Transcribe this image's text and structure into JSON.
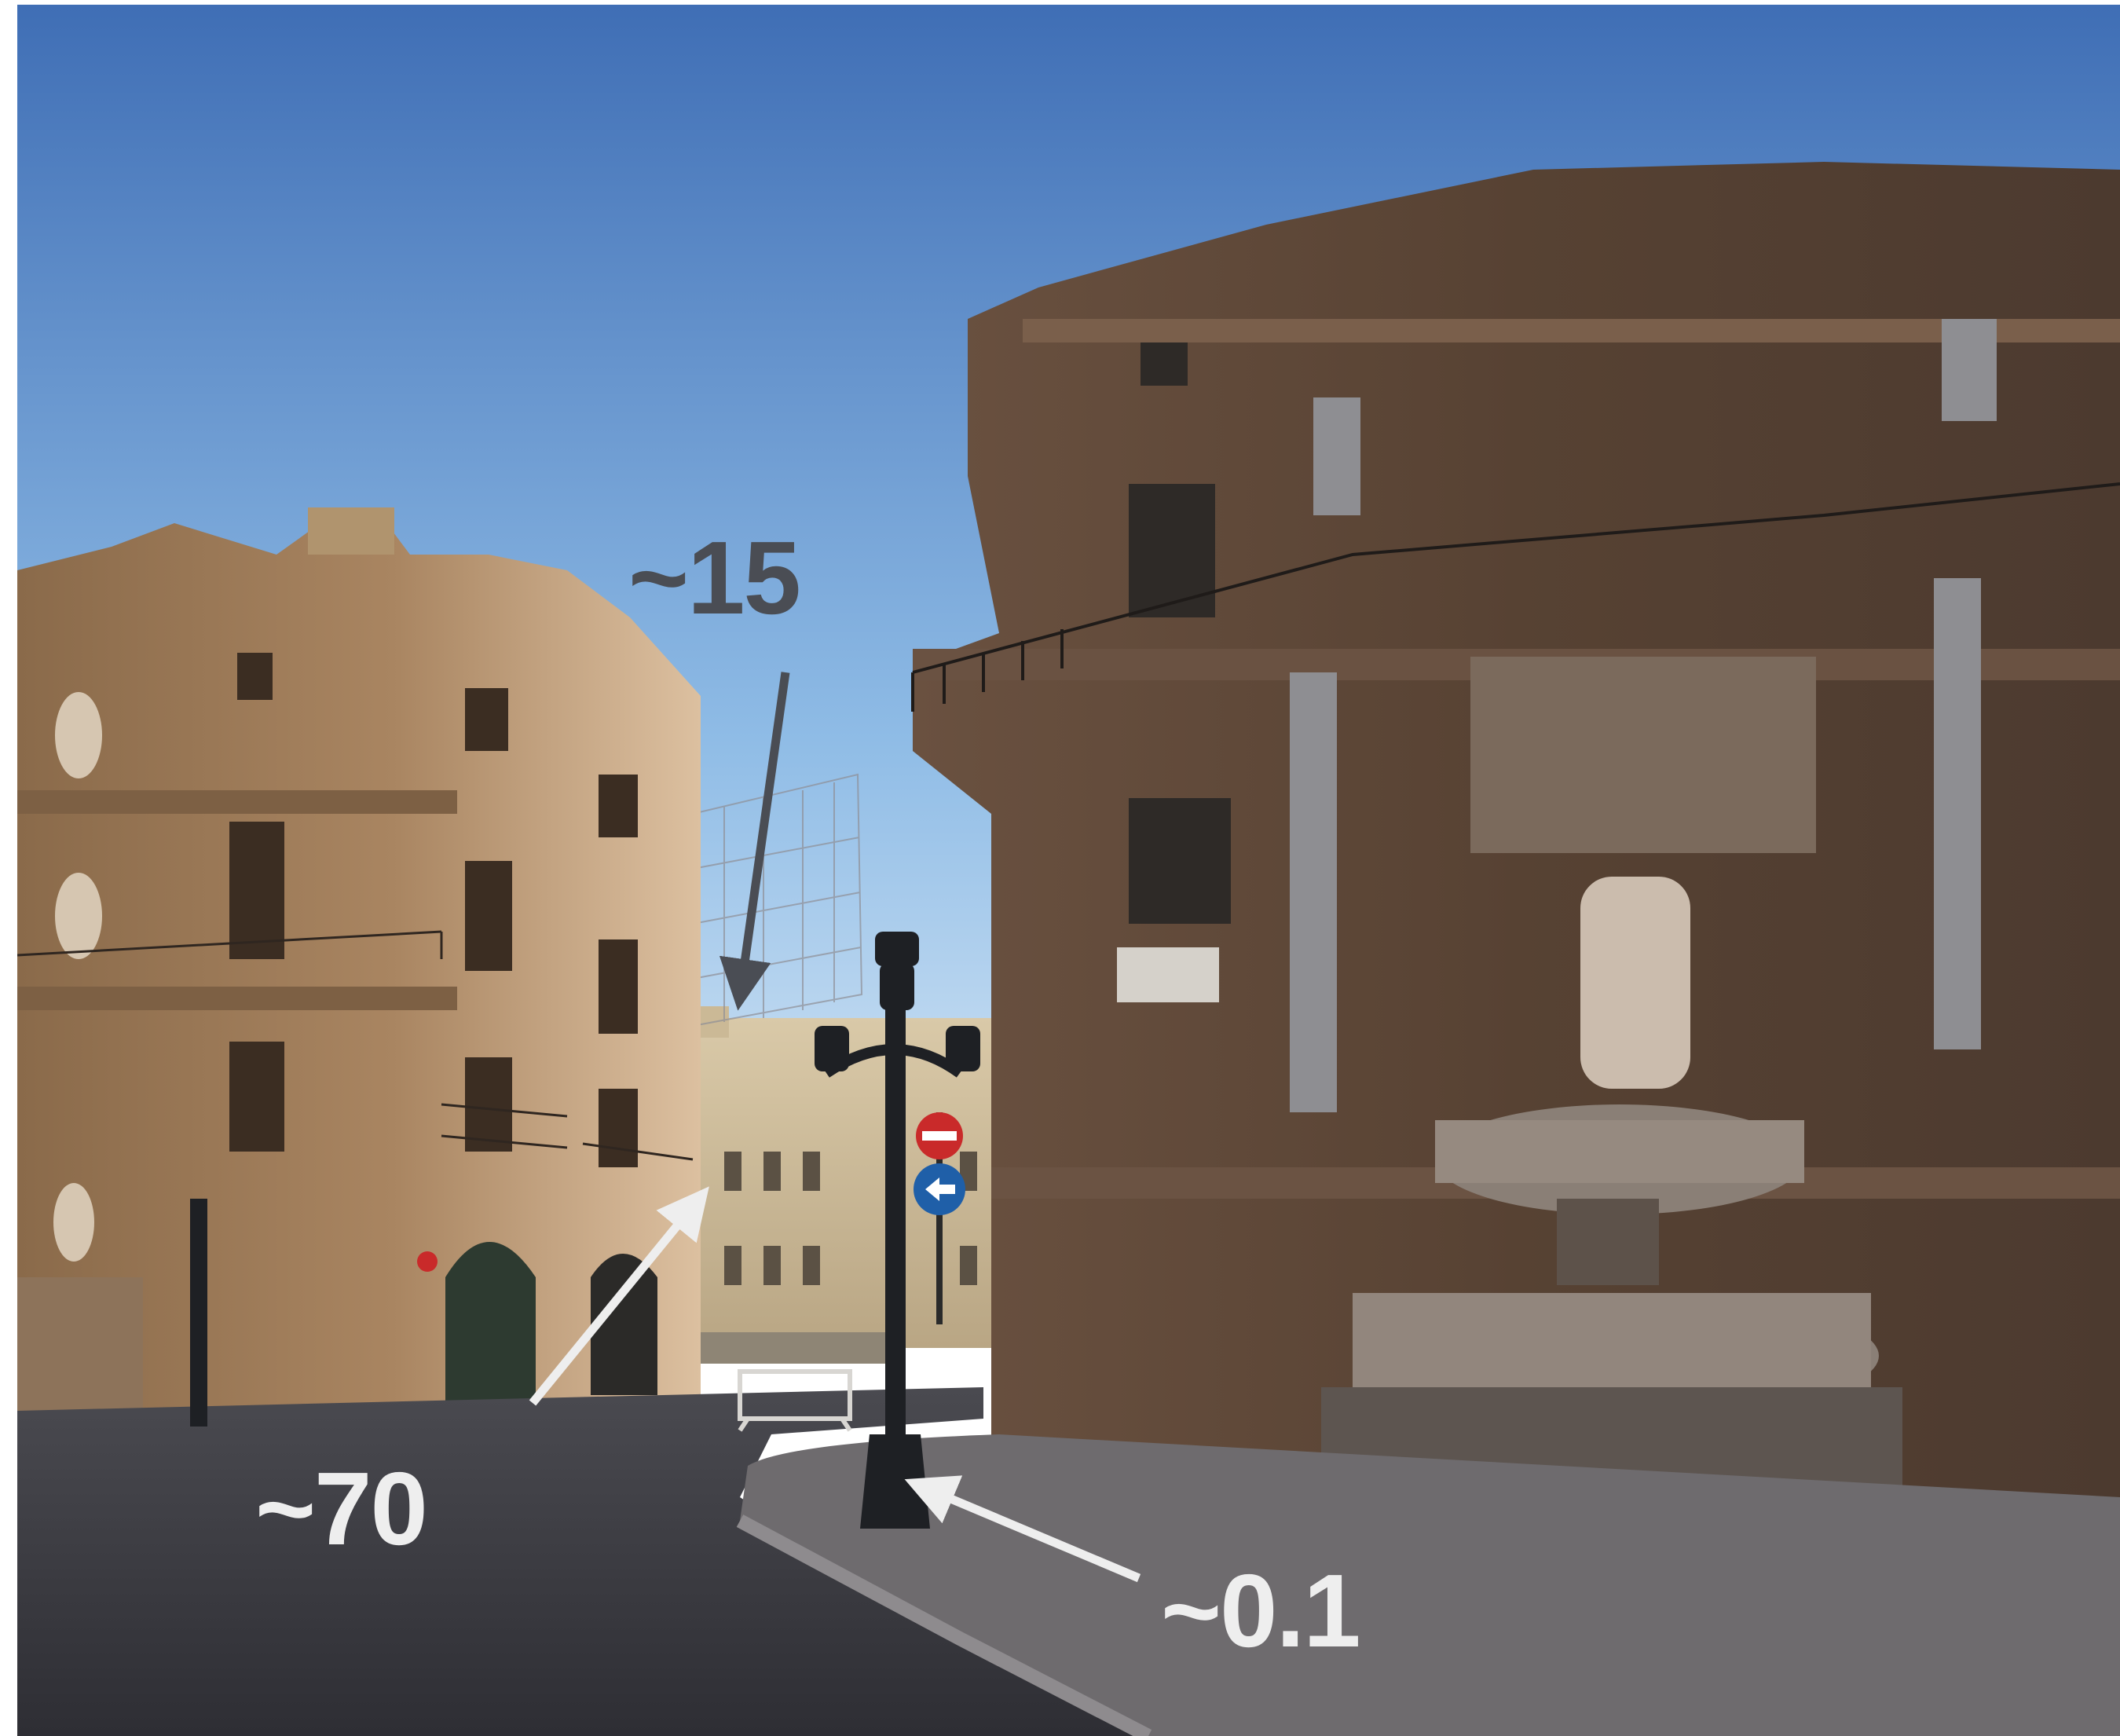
{
  "scene": {
    "icon": "photo-plaza-quattro-canti",
    "colors": {
      "sky_top": "#3f6eb5",
      "sky_bottom": "#c9e2f4",
      "building_left": "#9a7550",
      "building_left_light": "#d8b48a",
      "building_right": "#5e4636",
      "pavement": "#3c3c42",
      "sidewalk": "#6f6c6e",
      "lamp": "#1e2024",
      "arrow_dark": "#4a4d54",
      "arrow_light": "#eeeeee"
    }
  },
  "annotations": [
    {
      "id": "a15",
      "label": "~15"
    },
    {
      "id": "a70",
      "label": "~70"
    },
    {
      "id": "a01",
      "label": "~0.1"
    }
  ]
}
